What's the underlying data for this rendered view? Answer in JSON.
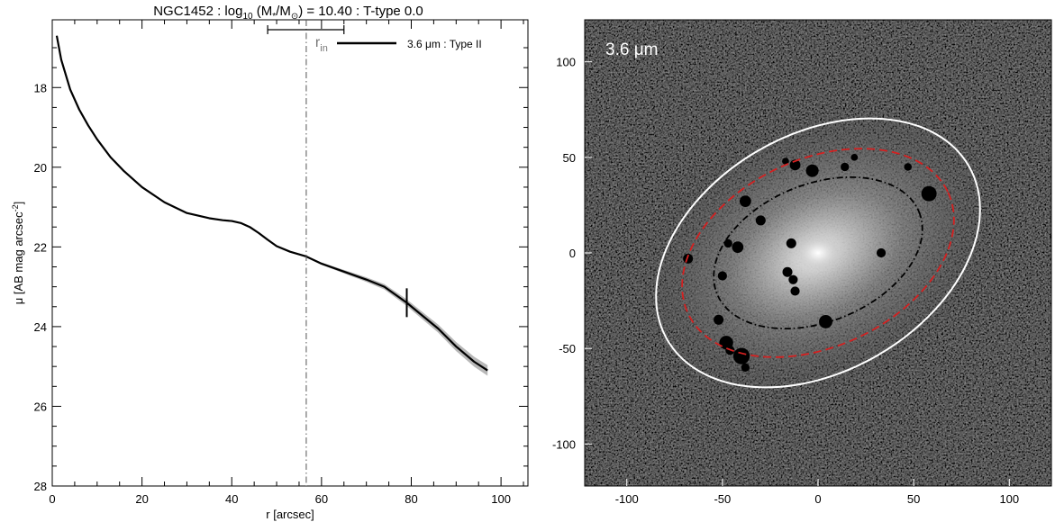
{
  "chart_data": [
    {
      "type": "line",
      "title_parts": {
        "prefix": "NGC1452 : log",
        "sub": "10",
        "mid": " (M",
        "star": "*",
        "slash": "/M",
        "sun": "⊙",
        "suffix": ") = 10.40 : T-type 0.0"
      },
      "xlabel": "r [arcsec]",
      "ylabel_prefix": "μ [AB mag arcsec",
      "ylabel_sup": "-2",
      "ylabel_suffix": "]",
      "xlim": [
        0,
        106
      ],
      "ylim": [
        28,
        16.3
      ],
      "y_inverted": true,
      "xticks": [
        "0",
        "20",
        "40",
        "60",
        "80",
        "100"
      ],
      "xtick_values": [
        0,
        20,
        40,
        60,
        80,
        100
      ],
      "yticks": [
        "18",
        "20",
        "22",
        "24",
        "26",
        "28"
      ],
      "ytick_values": [
        18,
        20,
        22,
        24,
        26,
        28
      ],
      "grid": false,
      "legend": {
        "position": "top-right",
        "label": "3.6 μm : Type II"
      },
      "series": [
        {
          "name": "3.6 μm : Type II",
          "x": [
            1,
            2,
            4,
            6,
            8,
            10,
            13,
            16,
            20,
            25,
            30,
            35,
            38,
            40,
            42,
            44,
            46,
            48,
            50,
            53,
            56.6,
            60,
            65,
            70,
            74,
            79,
            82,
            86,
            90,
            94,
            97
          ],
          "y": [
            16.7,
            17.3,
            18.05,
            18.55,
            18.95,
            19.3,
            19.75,
            20.1,
            20.5,
            20.88,
            21.15,
            21.28,
            21.33,
            21.35,
            21.4,
            21.5,
            21.65,
            21.82,
            21.98,
            22.12,
            22.24,
            22.42,
            22.62,
            22.82,
            23.0,
            23.4,
            23.68,
            24.05,
            24.5,
            24.88,
            25.1
          ]
        }
      ],
      "annotations": {
        "break_radius_label": "r",
        "break_radius_sub": "in",
        "break_radius": 56.6,
        "break_radius_error": [
          48,
          65
        ],
        "break_marker_r": 79,
        "break_marker_mu": 23.4
      }
    },
    {
      "type": "image",
      "label": "3.6 μm",
      "xlim": [
        -122,
        122
      ],
      "ylim": [
        -122,
        122
      ],
      "xticks": [
        "-100",
        "-50",
        "0",
        "50",
        "100"
      ],
      "xtick_values": [
        -100,
        -50,
        0,
        50,
        100
      ],
      "yticks": [
        "-100",
        "-50",
        "0",
        "50",
        "100"
      ],
      "ytick_values": [
        -100,
        -50,
        0,
        50,
        100
      ],
      "ellipses": [
        {
          "name": "outer",
          "color": "#ffffff",
          "style": "solid",
          "cx": 0,
          "cy": 0,
          "a": 91,
          "b": 62,
          "angle": 30
        },
        {
          "name": "break",
          "color": "#d42020",
          "style": "dashed",
          "cx": 0,
          "cy": 0,
          "a": 75,
          "b": 49,
          "angle": 25
        },
        {
          "name": "inner",
          "color": "#000000",
          "style": "dash-dot",
          "cx": 0,
          "cy": 0,
          "a": 57,
          "b": 36,
          "angle": 22
        }
      ],
      "masks": [
        [
          -38,
          27,
          3
        ],
        [
          -42,
          3,
          3
        ],
        [
          -47,
          5,
          2.2
        ],
        [
          -30,
          17,
          2.6
        ],
        [
          -14,
          5,
          2.6
        ],
        [
          -16,
          -10,
          2.6
        ],
        [
          -13,
          -14,
          2.4
        ],
        [
          -12,
          -20,
          2.4
        ],
        [
          -12,
          46,
          2.8
        ],
        [
          -3,
          43,
          3.3
        ],
        [
          14,
          45,
          2.2
        ],
        [
          4,
          -36,
          3.5
        ],
        [
          19,
          50,
          1.8
        ],
        [
          33,
          0,
          2.4
        ],
        [
          47,
          45,
          2
        ],
        [
          58,
          31,
          4
        ],
        [
          -48,
          -47,
          3.6
        ],
        [
          -40,
          -54,
          4.3
        ],
        [
          -46,
          -51,
          2.4
        ],
        [
          -52,
          -35,
          2.6
        ],
        [
          -50,
          -12,
          2.4
        ],
        [
          -68,
          -3,
          2.6
        ],
        [
          -17,
          48,
          1.8
        ],
        [
          -38,
          -60,
          2.2
        ]
      ]
    }
  ]
}
